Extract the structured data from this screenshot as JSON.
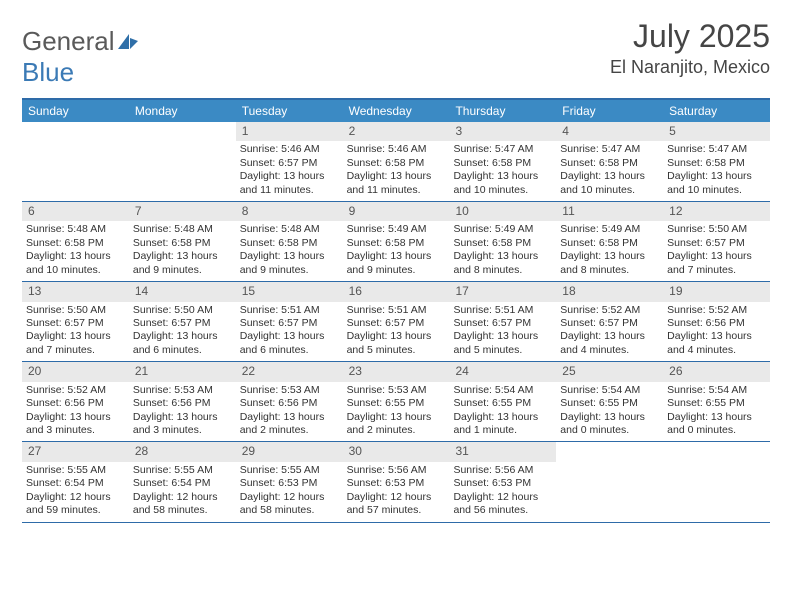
{
  "brand": {
    "part1": "General",
    "part2": "Blue"
  },
  "title": "July 2025",
  "location": "El Naranjito, Mexico",
  "colors": {
    "headerBlue": "#3b8ac4",
    "ruleBlue": "#2e6ba8",
    "dayNumBg": "#e9e9e9",
    "textGray": "#454545",
    "logoGray": "#5a5a5a",
    "logoBlue": "#3b7ab5"
  },
  "weekdays": [
    "Sunday",
    "Monday",
    "Tuesday",
    "Wednesday",
    "Thursday",
    "Friday",
    "Saturday"
  ],
  "weeks": [
    [
      null,
      null,
      {
        "n": "1",
        "sr": "5:46 AM",
        "ss": "6:57 PM",
        "dl": "13 hours and 11 minutes."
      },
      {
        "n": "2",
        "sr": "5:46 AM",
        "ss": "6:58 PM",
        "dl": "13 hours and 11 minutes."
      },
      {
        "n": "3",
        "sr": "5:47 AM",
        "ss": "6:58 PM",
        "dl": "13 hours and 10 minutes."
      },
      {
        "n": "4",
        "sr": "5:47 AM",
        "ss": "6:58 PM",
        "dl": "13 hours and 10 minutes."
      },
      {
        "n": "5",
        "sr": "5:47 AM",
        "ss": "6:58 PM",
        "dl": "13 hours and 10 minutes."
      }
    ],
    [
      {
        "n": "6",
        "sr": "5:48 AM",
        "ss": "6:58 PM",
        "dl": "13 hours and 10 minutes."
      },
      {
        "n": "7",
        "sr": "5:48 AM",
        "ss": "6:58 PM",
        "dl": "13 hours and 9 minutes."
      },
      {
        "n": "8",
        "sr": "5:48 AM",
        "ss": "6:58 PM",
        "dl": "13 hours and 9 minutes."
      },
      {
        "n": "9",
        "sr": "5:49 AM",
        "ss": "6:58 PM",
        "dl": "13 hours and 9 minutes."
      },
      {
        "n": "10",
        "sr": "5:49 AM",
        "ss": "6:58 PM",
        "dl": "13 hours and 8 minutes."
      },
      {
        "n": "11",
        "sr": "5:49 AM",
        "ss": "6:58 PM",
        "dl": "13 hours and 8 minutes."
      },
      {
        "n": "12",
        "sr": "5:50 AM",
        "ss": "6:57 PM",
        "dl": "13 hours and 7 minutes."
      }
    ],
    [
      {
        "n": "13",
        "sr": "5:50 AM",
        "ss": "6:57 PM",
        "dl": "13 hours and 7 minutes."
      },
      {
        "n": "14",
        "sr": "5:50 AM",
        "ss": "6:57 PM",
        "dl": "13 hours and 6 minutes."
      },
      {
        "n": "15",
        "sr": "5:51 AM",
        "ss": "6:57 PM",
        "dl": "13 hours and 6 minutes."
      },
      {
        "n": "16",
        "sr": "5:51 AM",
        "ss": "6:57 PM",
        "dl": "13 hours and 5 minutes."
      },
      {
        "n": "17",
        "sr": "5:51 AM",
        "ss": "6:57 PM",
        "dl": "13 hours and 5 minutes."
      },
      {
        "n": "18",
        "sr": "5:52 AM",
        "ss": "6:57 PM",
        "dl": "13 hours and 4 minutes."
      },
      {
        "n": "19",
        "sr": "5:52 AM",
        "ss": "6:56 PM",
        "dl": "13 hours and 4 minutes."
      }
    ],
    [
      {
        "n": "20",
        "sr": "5:52 AM",
        "ss": "6:56 PM",
        "dl": "13 hours and 3 minutes."
      },
      {
        "n": "21",
        "sr": "5:53 AM",
        "ss": "6:56 PM",
        "dl": "13 hours and 3 minutes."
      },
      {
        "n": "22",
        "sr": "5:53 AM",
        "ss": "6:56 PM",
        "dl": "13 hours and 2 minutes."
      },
      {
        "n": "23",
        "sr": "5:53 AM",
        "ss": "6:55 PM",
        "dl": "13 hours and 2 minutes."
      },
      {
        "n": "24",
        "sr": "5:54 AM",
        "ss": "6:55 PM",
        "dl": "13 hours and 1 minute."
      },
      {
        "n": "25",
        "sr": "5:54 AM",
        "ss": "6:55 PM",
        "dl": "13 hours and 0 minutes."
      },
      {
        "n": "26",
        "sr": "5:54 AM",
        "ss": "6:55 PM",
        "dl": "13 hours and 0 minutes."
      }
    ],
    [
      {
        "n": "27",
        "sr": "5:55 AM",
        "ss": "6:54 PM",
        "dl": "12 hours and 59 minutes."
      },
      {
        "n": "28",
        "sr": "5:55 AM",
        "ss": "6:54 PM",
        "dl": "12 hours and 58 minutes."
      },
      {
        "n": "29",
        "sr": "5:55 AM",
        "ss": "6:53 PM",
        "dl": "12 hours and 58 minutes."
      },
      {
        "n": "30",
        "sr": "5:56 AM",
        "ss": "6:53 PM",
        "dl": "12 hours and 57 minutes."
      },
      {
        "n": "31",
        "sr": "5:56 AM",
        "ss": "6:53 PM",
        "dl": "12 hours and 56 minutes."
      },
      null,
      null
    ]
  ],
  "labels": {
    "sunrise": "Sunrise:",
    "sunset": "Sunset:",
    "daylight": "Daylight:"
  }
}
